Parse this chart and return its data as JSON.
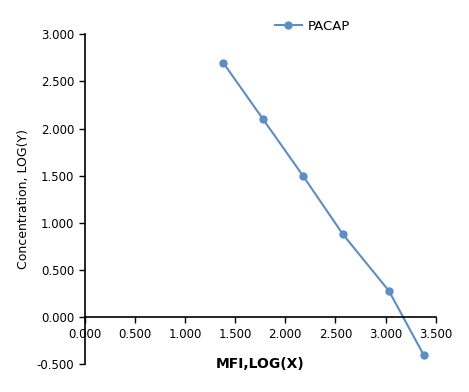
{
  "x_values": [
    1.38,
    1.778,
    2.176,
    2.574,
    3.033,
    3.38
  ],
  "y_values": [
    2.7,
    2.1,
    1.5,
    0.88,
    0.28,
    -0.4
  ],
  "line_color": "#5b8ec4",
  "marker": "o",
  "marker_size": 5,
  "line_width": 1.5,
  "xlabel": "MFI,LOG(X)",
  "ylabel": "Concentration, LOG(Y)",
  "xlim": [
    0.0,
    3.5
  ],
  "ylim": [
    -0.5,
    3.0
  ],
  "xticks": [
    0.0,
    0.5,
    1.0,
    1.5,
    2.0,
    2.5,
    3.0,
    3.5
  ],
  "yticks": [
    -0.5,
    0.0,
    0.5,
    1.0,
    1.5,
    2.0,
    2.5,
    3.0
  ],
  "legend_label": "PACAP",
  "background_color": "#ffffff"
}
